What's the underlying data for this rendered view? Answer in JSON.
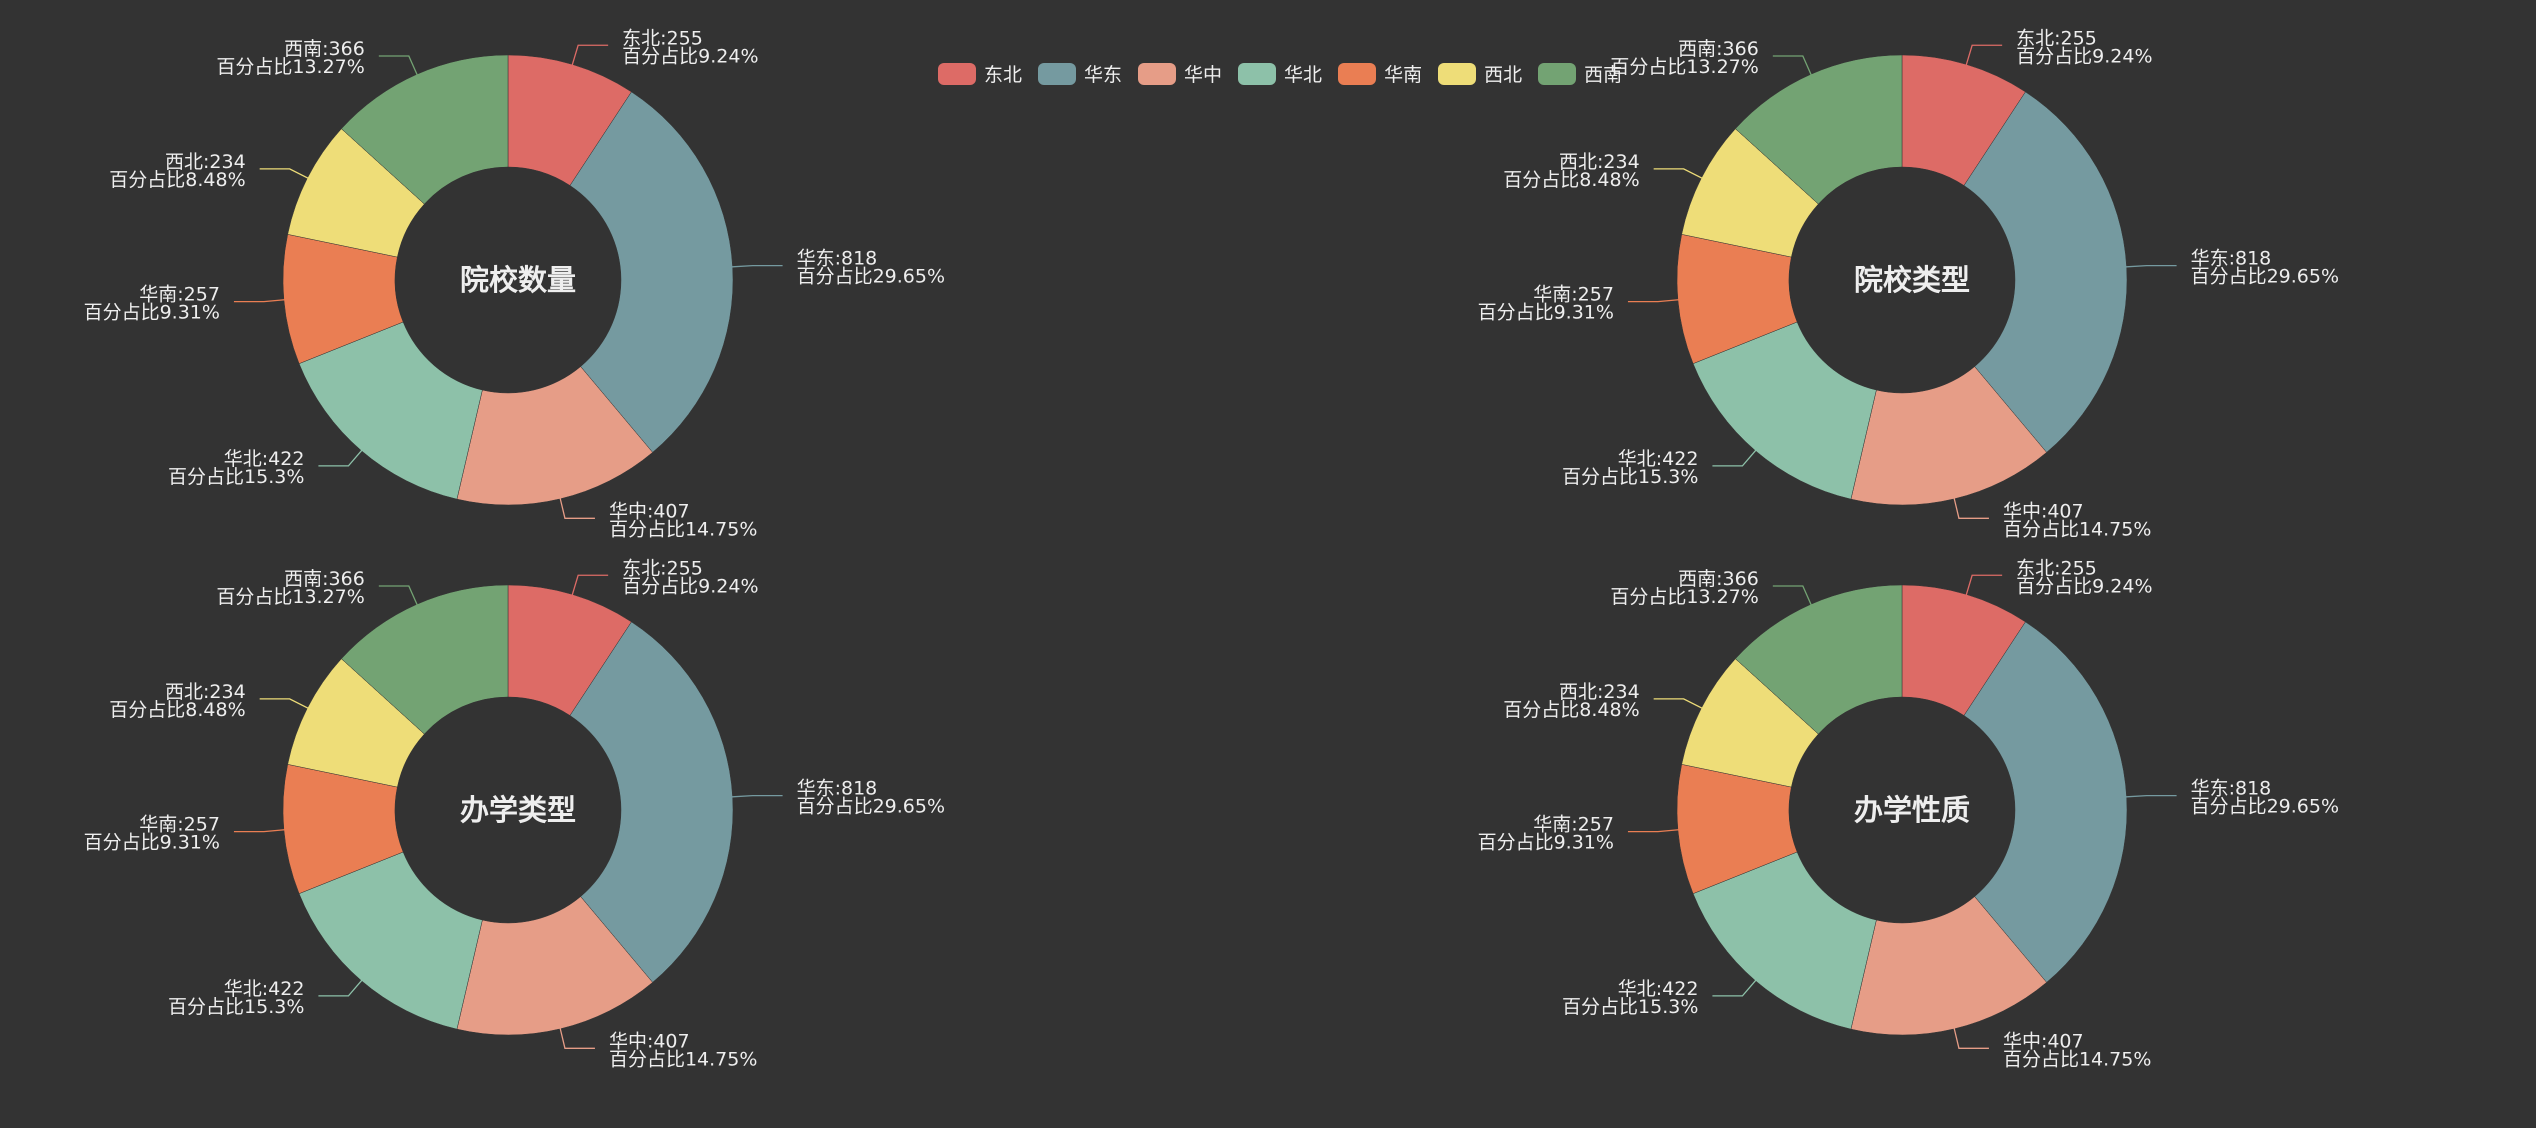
{
  "legend": [
    {
      "name": "东北",
      "color": "#dd6b66"
    },
    {
      "name": "华东",
      "color": "#759aa0"
    },
    {
      "name": "华中",
      "color": "#e69d87"
    },
    {
      "name": "华北",
      "color": "#8dc1a9"
    },
    {
      "name": "华南",
      "color": "#ea7e53"
    },
    {
      "name": "西北",
      "color": "#eedd78"
    },
    {
      "name": "西南",
      "color": "#73a373"
    }
  ],
  "label_prefix": "百分占比",
  "chart_data": [
    {
      "type": "pie",
      "title": "院校数量",
      "categories": [
        "东北",
        "华东",
        "华中",
        "华北",
        "华南",
        "西北",
        "西南"
      ],
      "values": [
        255,
        818,
        407,
        422,
        257,
        234,
        366
      ],
      "percents": [
        "9.24%",
        "29.65%",
        "14.75%",
        "15.3%",
        "9.31%",
        "8.48%",
        "13.27%"
      ]
    },
    {
      "type": "pie",
      "title": "院校类型",
      "categories": [
        "东北",
        "华东",
        "华中",
        "华北",
        "华南",
        "西北",
        "西南"
      ],
      "values": [
        255,
        818,
        407,
        422,
        257,
        234,
        366
      ],
      "percents": [
        "9.24%",
        "29.65%",
        "14.75%",
        "15.3%",
        "9.31%",
        "8.48%",
        "13.27%"
      ]
    },
    {
      "type": "pie",
      "title": "办学类型",
      "categories": [
        "东北",
        "华东",
        "华中",
        "华北",
        "华南",
        "西北",
        "西南"
      ],
      "values": [
        255,
        818,
        407,
        422,
        257,
        234,
        366
      ],
      "percents": [
        "9.24%",
        "29.65%",
        "14.75%",
        "15.3%",
        "9.31%",
        "8.48%",
        "13.27%"
      ]
    },
    {
      "type": "pie",
      "title": "办学性质",
      "categories": [
        "东北",
        "华东",
        "华中",
        "华北",
        "华南",
        "西北",
        "西南"
      ],
      "values": [
        255,
        818,
        407,
        422,
        257,
        234,
        366
      ],
      "percents": [
        "9.24%",
        "29.65%",
        "14.75%",
        "15.3%",
        "9.31%",
        "8.48%",
        "13.27%"
      ]
    }
  ]
}
